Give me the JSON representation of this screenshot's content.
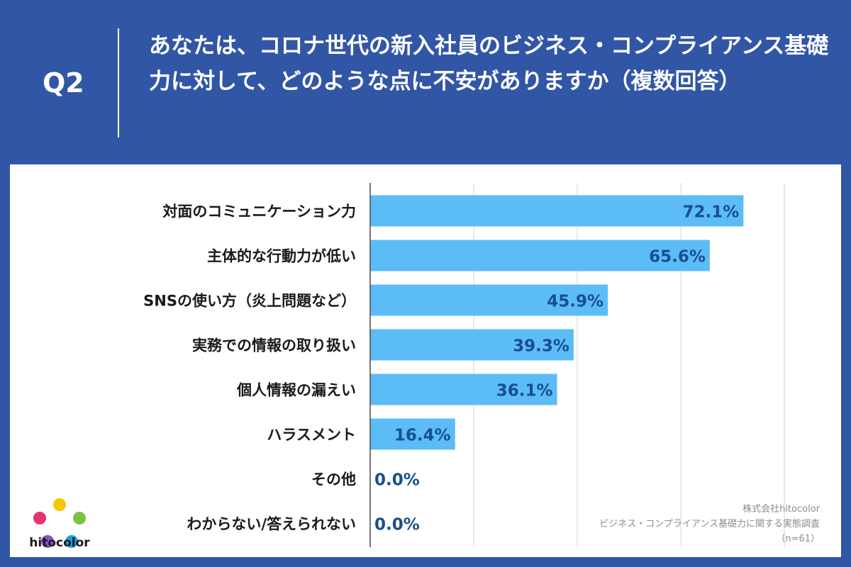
{
  "header": {
    "question_label": "Q2",
    "title": "あなたは、コロナ世代の新入社員のビジネス・コンプライアンス基礎力に対して、どのような点に不安がありますか（複数回答）"
  },
  "chart_data": {
    "type": "bar",
    "orientation": "horizontal",
    "categories": [
      "対面のコミュニケーション力",
      "主体的な行動力が低い",
      "SNSの使い方（炎上問題など）",
      "実務での情報の取り扱い",
      "個人情報の漏えい",
      "ハラスメント",
      "その他",
      "わからない/答えられない"
    ],
    "values": [
      72.1,
      65.6,
      45.9,
      39.3,
      36.1,
      16.4,
      0.0,
      0.0
    ],
    "value_labels": [
      "72.1%",
      "65.6%",
      "45.9%",
      "39.3%",
      "36.1%",
      "16.4%",
      "0.0%",
      "0.0%"
    ],
    "xlim": [
      0,
      80
    ],
    "grid": true,
    "bar_color": "#5bbcf8",
    "label_color": "#1a4e8c"
  },
  "brand": {
    "logo_icon": "star-logo-icon",
    "name": "hitocolor"
  },
  "source": {
    "line1": "株式会社hitocolor",
    "line2": "ビジネス・コンプライアンス基礎力に関する実態調査",
    "line3": "（n=61）"
  },
  "colors": {
    "background": "#3256a6",
    "panel": "#ffffff"
  }
}
